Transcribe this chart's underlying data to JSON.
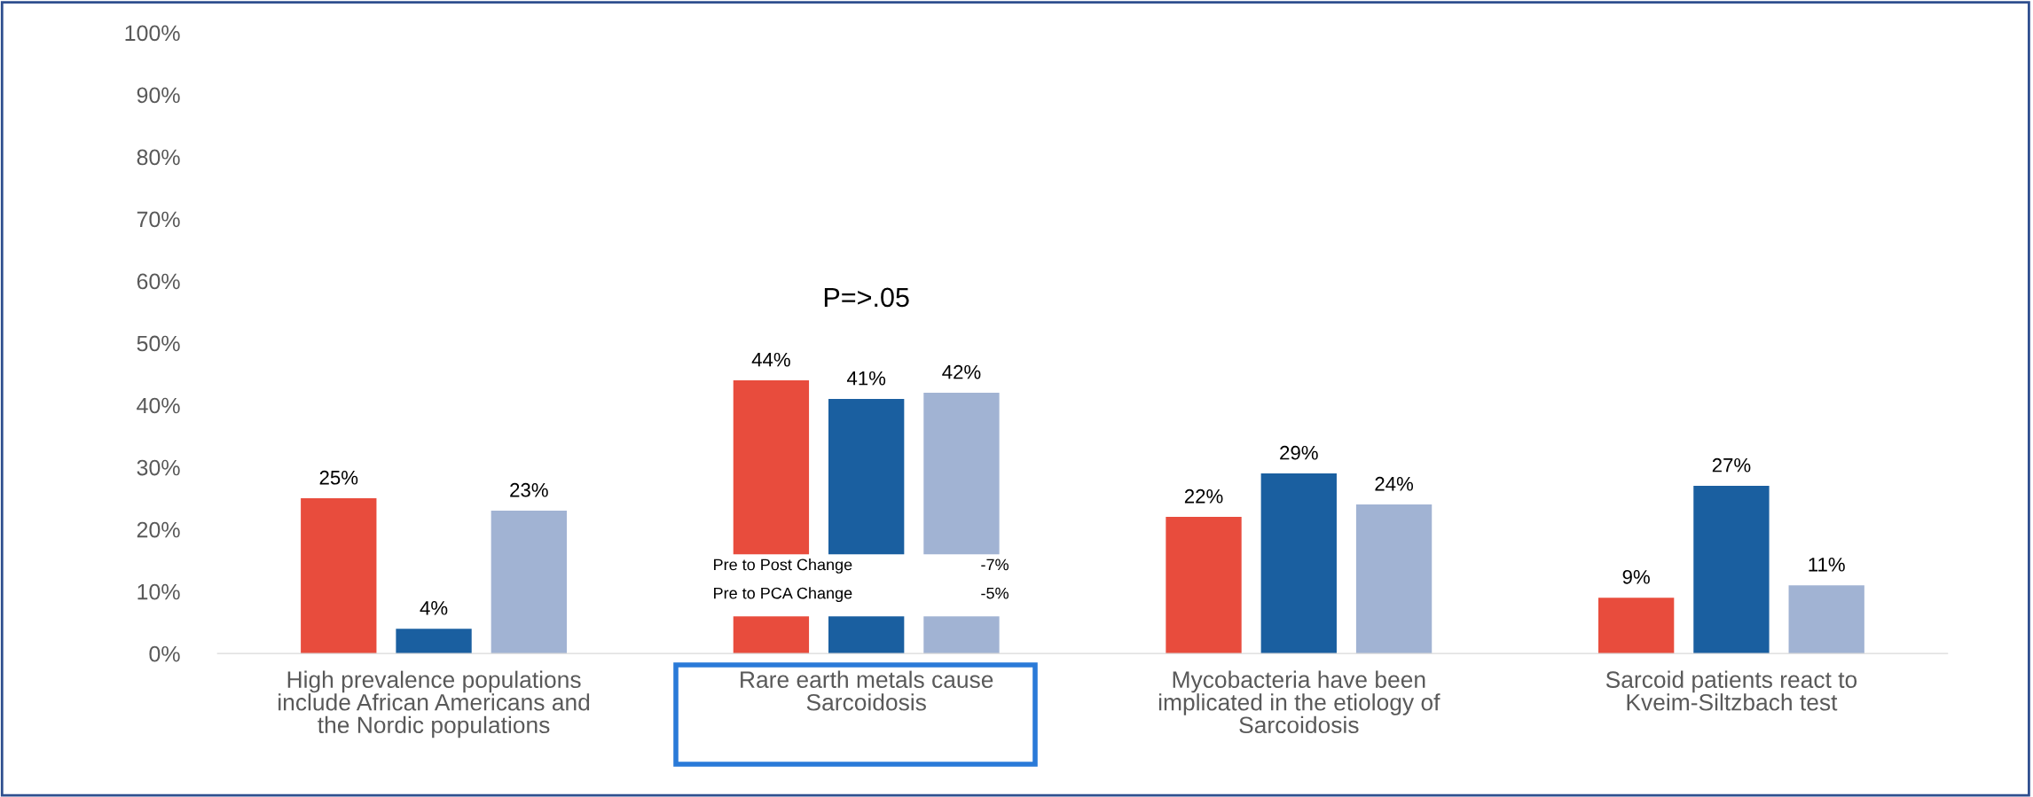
{
  "chart_data": {
    "type": "bar",
    "categories": [
      "High prevalence populations include African Americans and the Nordic populations",
      "Rare earth metals cause Sarcoidosis",
      "Mycobacteria have been implicated in the etiology of Sarcoidosis",
      "Sarcoid patients react to Kveim-Siltzbach test"
    ],
    "series": [
      {
        "color": "#e84c3d",
        "values": [
          25,
          44,
          22,
          9
        ],
        "value_labels": [
          "25%",
          "44%",
          "22%",
          "9%"
        ]
      },
      {
        "color": "#1a5fa0",
        "values": [
          4,
          41,
          29,
          27
        ],
        "value_labels": [
          "4%",
          "41%",
          "29%",
          "27%"
        ]
      },
      {
        "color": "#a1b3d3",
        "values": [
          23,
          42,
          24,
          11
        ],
        "value_labels": [
          "23%",
          "42%",
          "24%",
          "11%"
        ]
      }
    ],
    "ylim": [
      0,
      100
    ],
    "yticks": [
      {
        "value": 0,
        "label": "0%"
      },
      {
        "value": 10,
        "label": "10%"
      },
      {
        "value": 20,
        "label": "20%"
      },
      {
        "value": 30,
        "label": "30%"
      },
      {
        "value": 40,
        "label": "40%"
      },
      {
        "value": 50,
        "label": "50%"
      },
      {
        "value": 60,
        "label": "60%"
      },
      {
        "value": 70,
        "label": "70%"
      },
      {
        "value": 80,
        "label": "80%"
      },
      {
        "value": 90,
        "label": "90%"
      },
      {
        "value": 100,
        "label": "100%"
      }
    ],
    "grid": false,
    "legend": false,
    "annotations": [
      "P=>.05",
      "Pre to Post Change",
      "-7%",
      "Pre to PCA Change",
      "-5%"
    ]
  }
}
